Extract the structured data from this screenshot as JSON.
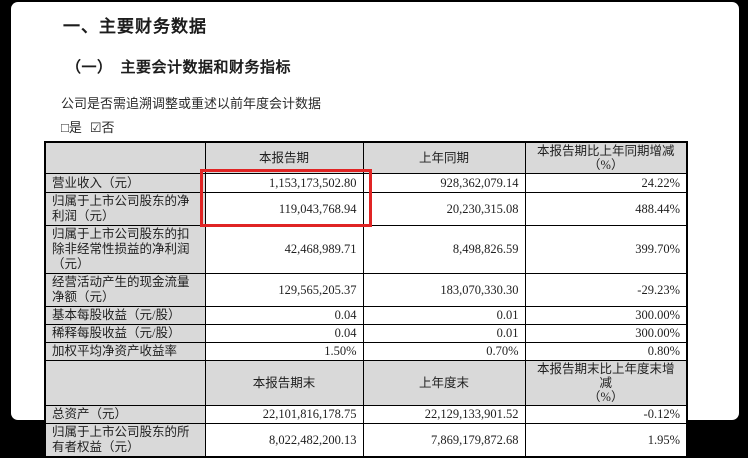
{
  "doc": {
    "title": "一、主要财务数据",
    "subtitle": "（一）　主要会计数据和财务指标",
    "restate_note": "公司是否需追溯调整或重述以前年度会计数据",
    "checkbox_yes": "□是",
    "checkbox_no": "☑否"
  },
  "table": {
    "period_section": {
      "headers": {
        "current": "本报告期",
        "prior": "上年同期",
        "change_line1": "本报告期比上年同期增减",
        "change_line2": "（%）"
      },
      "rows": [
        {
          "label": "营业收入（元）",
          "current": "1,153,173,502.80",
          "prior": "928,362,079.14",
          "change": "24.22%"
        },
        {
          "label": "归属于上市公司股东的净利润（元）",
          "current": "119,043,768.94",
          "prior": "20,230,315.08",
          "change": "488.44%"
        },
        {
          "label": "归属于上市公司股东的扣除非经常性损益的净利润（元）",
          "current": "42,468,989.71",
          "prior": "8,498,826.59",
          "change": "399.70%"
        },
        {
          "label": "经营活动产生的现金流量净额（元）",
          "current": "129,565,205.37",
          "prior": "183,070,330.30",
          "change": "-29.23%"
        },
        {
          "label": "基本每股收益（元/股）",
          "current": "0.04",
          "prior": "0.01",
          "change": "300.00%"
        },
        {
          "label": "稀释每股收益（元/股）",
          "current": "0.04",
          "prior": "0.01",
          "change": "300.00%"
        },
        {
          "label": "加权平均净资产收益率",
          "current": "1.50%",
          "prior": "0.70%",
          "change": "0.80%"
        }
      ]
    },
    "period_end_section": {
      "headers": {
        "current": "本报告期末",
        "prior": "上年度末",
        "change_line1": "本报告期末比上年度末增减",
        "change_line2": "（%）"
      },
      "rows": [
        {
          "label": "总资产（元）",
          "current": "22,101,816,178.75",
          "prior": "22,129,133,901.52",
          "change": "-0.12%"
        },
        {
          "label": "归属于上市公司股东的所有者权益（元）",
          "current": "8,022,482,200.13",
          "prior": "7,869,179,872.68",
          "change": "1.95%"
        }
      ]
    }
  },
  "colors": {
    "highlight_red": "#e02424",
    "header_gray": "#d9d9d9"
  }
}
